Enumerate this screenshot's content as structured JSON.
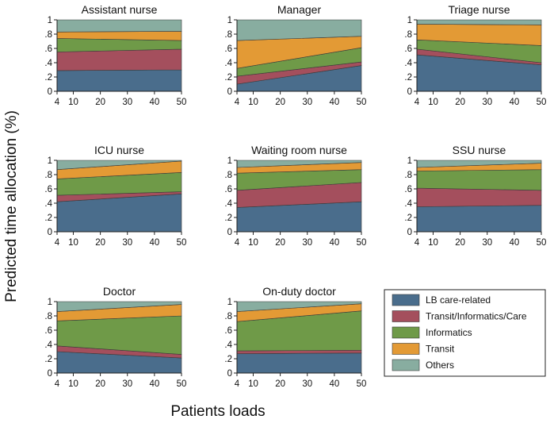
{
  "figure": {
    "ylabel": "Predicted time allocation (%)",
    "xlabel": "Patients loads"
  },
  "legend": {
    "placement": "bottom-right",
    "entries": [
      {
        "name": "LB care-related",
        "color": "#4a6d8c"
      },
      {
        "name": "Transit/Informatics/Care",
        "color": "#a44f5d"
      },
      {
        "name": "Informatics",
        "color": "#6f9a48"
      },
      {
        "name": "Transit",
        "color": "#e39a35"
      },
      {
        "name": "Others",
        "color": "#88ada0"
      }
    ]
  },
  "chart_data": [
    {
      "type": "area",
      "title": "Assistant nurse",
      "x": [
        4,
        50
      ],
      "xticks": [
        4,
        10,
        20,
        30,
        40,
        50
      ],
      "yticks": [
        "0",
        ".2",
        ".4",
        ".6",
        ".8",
        "1"
      ],
      "ylim": [
        0,
        1
      ],
      "stacked_boundaries": [
        [
          0.29,
          0.3
        ],
        [
          0.55,
          0.59
        ],
        [
          0.74,
          0.71
        ],
        [
          0.83,
          0.84
        ],
        [
          1.0,
          1.0
        ]
      ]
    },
    {
      "type": "area",
      "title": "Manager",
      "x": [
        4,
        50
      ],
      "xticks": [
        4,
        10,
        20,
        30,
        40,
        50
      ],
      "yticks": [
        "0",
        ".2",
        ".4",
        ".6",
        ".8",
        "1"
      ],
      "ylim": [
        0,
        1
      ],
      "stacked_boundaries": [
        [
          0.1,
          0.36
        ],
        [
          0.21,
          0.41
        ],
        [
          0.32,
          0.61
        ],
        [
          0.71,
          0.77
        ],
        [
          1.0,
          1.0
        ]
      ]
    },
    {
      "type": "area",
      "title": "Triage nurse",
      "x": [
        4,
        50
      ],
      "xticks": [
        4,
        10,
        20,
        30,
        40,
        50
      ],
      "yticks": [
        "0",
        ".2",
        ".4",
        ".6",
        ".8",
        "1"
      ],
      "ylim": [
        0,
        1
      ],
      "stacked_boundaries": [
        [
          0.51,
          0.37
        ],
        [
          0.59,
          0.4
        ],
        [
          0.72,
          0.64
        ],
        [
          0.94,
          0.93
        ],
        [
          1.0,
          1.0
        ]
      ]
    },
    {
      "type": "area",
      "title": "ICU nurse",
      "x": [
        4,
        50
      ],
      "xticks": [
        4,
        10,
        20,
        30,
        40,
        50
      ],
      "yticks": [
        "0",
        ".2",
        ".4",
        ".6",
        ".8",
        "1"
      ],
      "ylim": [
        0,
        1
      ],
      "stacked_boundaries": [
        [
          0.42,
          0.53
        ],
        [
          0.51,
          0.56
        ],
        [
          0.74,
          0.83
        ],
        [
          0.87,
          0.99
        ],
        [
          1.0,
          1.0
        ]
      ]
    },
    {
      "type": "area",
      "title": "Waiting room nurse",
      "x": [
        4,
        50
      ],
      "xticks": [
        4,
        10,
        20,
        30,
        40,
        50
      ],
      "yticks": [
        "0",
        ".2",
        ".4",
        ".6",
        ".8",
        "1"
      ],
      "ylim": [
        0,
        1
      ],
      "stacked_boundaries": [
        [
          0.34,
          0.42
        ],
        [
          0.58,
          0.69
        ],
        [
          0.82,
          0.87
        ],
        [
          0.9,
          0.97
        ],
        [
          1.0,
          1.0
        ]
      ]
    },
    {
      "type": "area",
      "title": "SSU nurse",
      "x": [
        4,
        50
      ],
      "xticks": [
        4,
        10,
        20,
        30,
        40,
        50
      ],
      "yticks": [
        "0",
        ".2",
        ".4",
        ".6",
        ".8",
        "1"
      ],
      "ylim": [
        0,
        1
      ],
      "stacked_boundaries": [
        [
          0.35,
          0.37
        ],
        [
          0.61,
          0.58
        ],
        [
          0.85,
          0.87
        ],
        [
          0.9,
          0.96
        ],
        [
          1.0,
          1.0
        ]
      ]
    },
    {
      "type": "area",
      "title": "Doctor",
      "x": [
        4,
        50
      ],
      "xticks": [
        4,
        10,
        20,
        30,
        40,
        50
      ],
      "yticks": [
        "0",
        ".2",
        ".4",
        ".6",
        ".8",
        "1"
      ],
      "ylim": [
        0,
        1
      ],
      "stacked_boundaries": [
        [
          0.3,
          0.21
        ],
        [
          0.38,
          0.26
        ],
        [
          0.73,
          0.8
        ],
        [
          0.86,
          0.96
        ],
        [
          1.0,
          1.0
        ]
      ]
    },
    {
      "type": "area",
      "title": "On-duty doctor",
      "x": [
        4,
        50
      ],
      "xticks": [
        4,
        10,
        20,
        30,
        40,
        50
      ],
      "yticks": [
        "0",
        ".2",
        ".4",
        ".6",
        ".8",
        "1"
      ],
      "ylim": [
        0,
        1
      ],
      "stacked_boundaries": [
        [
          0.27,
          0.28
        ],
        [
          0.31,
          0.32
        ],
        [
          0.72,
          0.87
        ],
        [
          0.86,
          0.97
        ],
        [
          1.0,
          1.0
        ]
      ]
    }
  ]
}
